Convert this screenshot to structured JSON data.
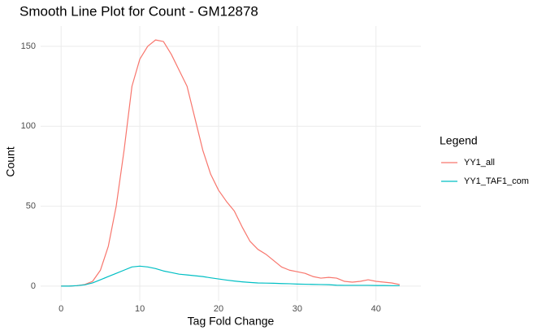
{
  "chart_data": {
    "type": "line",
    "title": "Smooth Line Plot for Count - GM12878",
    "x_label": "Tag Fold Change",
    "y_label": "Count",
    "legend_title": "Legend",
    "x": [
      0,
      1,
      2,
      3,
      4,
      5,
      6,
      7,
      8,
      9,
      10,
      11,
      12,
      13,
      14,
      15,
      16,
      17,
      18,
      19,
      20,
      21,
      22,
      23,
      24,
      25,
      26,
      27,
      28,
      29,
      30,
      31,
      32,
      33,
      34,
      35,
      36,
      37,
      38,
      39,
      40,
      41,
      42,
      43
    ],
    "series": [
      {
        "name": "YY1_all",
        "color": "#F8766D",
        "values": [
          0,
          0,
          0.3,
          1,
          3,
          10,
          25,
          50,
          85,
          125,
          142,
          150,
          154,
          153,
          145,
          135,
          125,
          105,
          85,
          70,
          60,
          53,
          47,
          37,
          28,
          23,
          20,
          16,
          12,
          10,
          9,
          8,
          6,
          5,
          5.5,
          5,
          3,
          2.5,
          3,
          4,
          3,
          2.5,
          2,
          1
        ]
      },
      {
        "name": "YY1_TAF1_com",
        "color": "#00BFC4",
        "values": [
          0,
          0,
          0.3,
          0.8,
          2,
          4,
          6,
          8,
          10,
          12,
          12.5,
          12,
          11,
          9.5,
          8.5,
          7.5,
          7,
          6.5,
          6,
          5.2,
          4.5,
          3.8,
          3.2,
          2.7,
          2.3,
          2,
          1.9,
          1.8,
          1.6,
          1.5,
          1.3,
          1.2,
          1.1,
          1,
          0.9,
          0.6,
          0.5,
          0.5,
          0.5,
          0.5,
          0.4,
          0.4,
          0.3,
          0.3
        ]
      }
    ],
    "xlim": [
      -2.6,
      45.7
    ],
    "ylim": [
      -9.2,
      162.7
    ],
    "xticks": [
      0,
      10,
      20,
      30,
      40
    ],
    "yticks": [
      0,
      50,
      100,
      150
    ],
    "grid": true
  }
}
